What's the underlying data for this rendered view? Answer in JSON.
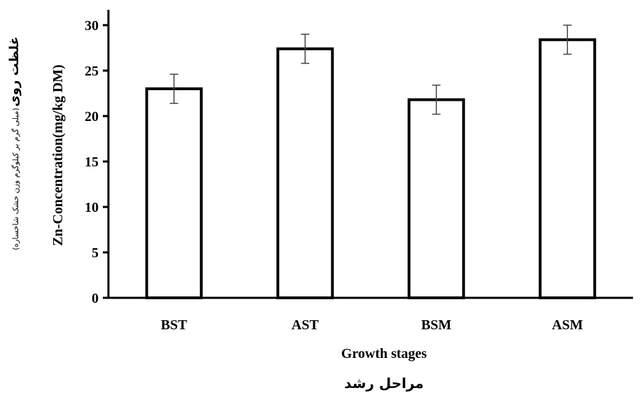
{
  "chart_data": {
    "type": "bar",
    "categories": [
      "BST",
      "AST",
      "BSM",
      "ASM"
    ],
    "values": [
      23.0,
      27.4,
      21.8,
      28.4
    ],
    "error": [
      1.6,
      1.6,
      1.6,
      1.6
    ],
    "ylim": [
      0,
      30
    ],
    "yticks": [
      0,
      5,
      10,
      15,
      20,
      25,
      30
    ],
    "xlabel": "Growth stages",
    "ylabel": "Zn-Concentration(mg/kg DM)",
    "xlabel_fa": "مراحل رشد",
    "ylabel_fa_main": "غلظت روی",
    "ylabel_fa_sub": "(میلی گرم بر کیلوگرم وزن خشک شاخساره)",
    "grid": false,
    "legend": "none",
    "bar_fill": "#ffffff",
    "bar_stroke": "#000000"
  }
}
